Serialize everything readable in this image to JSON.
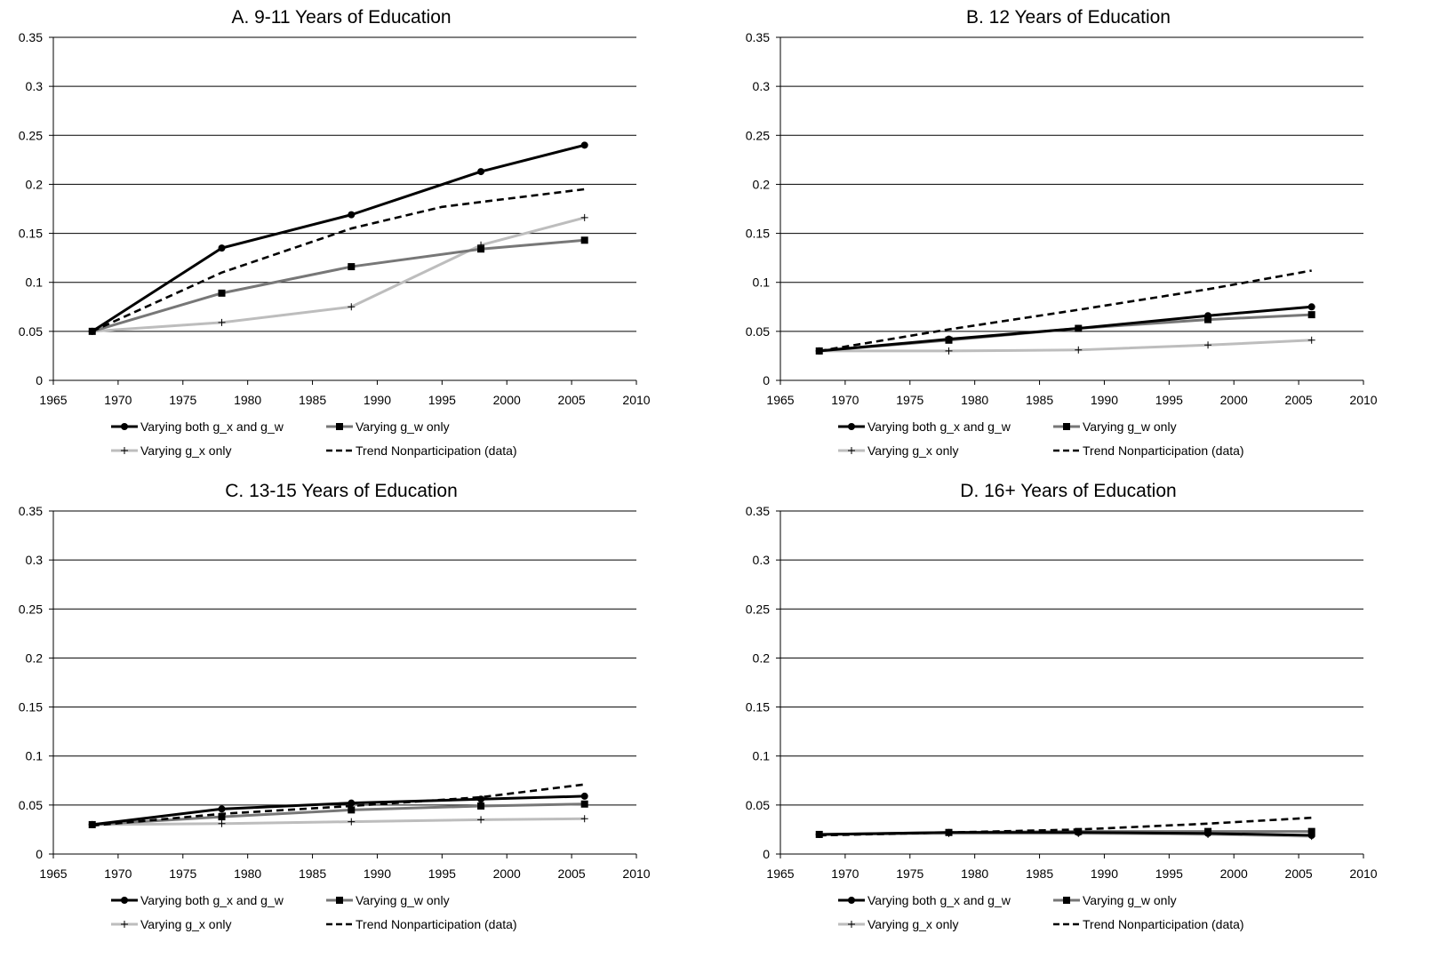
{
  "legend_labels": {
    "both": "Varying both g_x and g_w",
    "gw": "Varying g_w only",
    "gx": "Varying g_x only",
    "trend": "Trend Nonparticipation (data)"
  },
  "colors": {
    "both": "#000000",
    "gw": "#777777",
    "gx": "#bdbdbd",
    "trend": "#000000",
    "grid": "#000000"
  },
  "chart_data": [
    {
      "type": "line",
      "title": "A. 9-11 Years of Education",
      "xlim": [
        1965,
        2010
      ],
      "ylim": [
        0,
        0.35
      ],
      "xticks": [
        "1965",
        "1970",
        "1975",
        "1980",
        "1985",
        "1990",
        "1995",
        "2000",
        "2005",
        "2010"
      ],
      "yticks": [
        "0",
        "0.05",
        "0.1",
        "0.15",
        "0.2",
        "0.25",
        "0.3",
        "0.35"
      ],
      "grid": true,
      "legend": "bottom",
      "series": [
        {
          "name": "Varying both g_x and g_w",
          "key": "both",
          "x": [
            1968,
            1978,
            1988,
            1998,
            2006
          ],
          "y": [
            0.05,
            0.135,
            0.169,
            0.213,
            0.24
          ]
        },
        {
          "name": "Varying g_w only",
          "key": "gw",
          "x": [
            1968,
            1978,
            1988,
            1998,
            2006
          ],
          "y": [
            0.05,
            0.089,
            0.116,
            0.134,
            0.143
          ]
        },
        {
          "name": "Varying g_x only",
          "key": "gx",
          "x": [
            1968,
            1978,
            1988,
            1998,
            2006
          ],
          "y": [
            0.05,
            0.059,
            0.075,
            0.138,
            0.166
          ]
        },
        {
          "name": "Trend Nonparticipation (data)",
          "key": "trend",
          "x": [
            1968,
            1978,
            1988,
            1995,
            1998,
            2006
          ],
          "y": [
            0.05,
            0.11,
            0.155,
            0.177,
            0.182,
            0.195
          ]
        }
      ]
    },
    {
      "type": "line",
      "title": "B. 12 Years of Education",
      "xlim": [
        1965,
        2010
      ],
      "ylim": [
        0,
        0.35
      ],
      "xticks": [
        "1965",
        "1970",
        "1975",
        "1980",
        "1985",
        "1990",
        "1995",
        "2000",
        "2005",
        "2010"
      ],
      "yticks": [
        "0",
        "0.05",
        "0.1",
        "0.15",
        "0.2",
        "0.25",
        "0.3",
        "0.35"
      ],
      "grid": true,
      "legend": "bottom",
      "series": [
        {
          "name": "Varying both g_x and g_w",
          "key": "both",
          "x": [
            1968,
            1978,
            1988,
            1998,
            2006
          ],
          "y": [
            0.03,
            0.042,
            0.053,
            0.066,
            0.075
          ]
        },
        {
          "name": "Varying g_w only",
          "key": "gw",
          "x": [
            1968,
            1978,
            1988,
            1998,
            2006
          ],
          "y": [
            0.03,
            0.041,
            0.053,
            0.062,
            0.067
          ]
        },
        {
          "name": "Varying g_x only",
          "key": "gx",
          "x": [
            1968,
            1978,
            1988,
            1998,
            2006
          ],
          "y": [
            0.03,
            0.03,
            0.031,
            0.036,
            0.041
          ]
        },
        {
          "name": "Trend Nonparticipation (data)",
          "key": "trend",
          "x": [
            1968,
            1978,
            1988,
            1998,
            2006
          ],
          "y": [
            0.03,
            0.052,
            0.072,
            0.093,
            0.112
          ]
        }
      ]
    },
    {
      "type": "line",
      "title": "C. 13-15 Years of Education",
      "xlim": [
        1965,
        2010
      ],
      "ylim": [
        0,
        0.35
      ],
      "xticks": [
        "1965",
        "1970",
        "1975",
        "1980",
        "1985",
        "1990",
        "1995",
        "2000",
        "2005",
        "2010"
      ],
      "yticks": [
        "0",
        "0.05",
        "0.1",
        "0.15",
        "0.2",
        "0.25",
        "0.3",
        "0.35"
      ],
      "grid": true,
      "legend": "bottom",
      "series": [
        {
          "name": "Varying both g_x and g_w",
          "key": "both",
          "x": [
            1968,
            1978,
            1988,
            1998,
            2006
          ],
          "y": [
            0.03,
            0.046,
            0.052,
            0.056,
            0.059
          ]
        },
        {
          "name": "Varying g_w only",
          "key": "gw",
          "x": [
            1968,
            1978,
            1988,
            1998,
            2006
          ],
          "y": [
            0.03,
            0.038,
            0.045,
            0.049,
            0.051
          ]
        },
        {
          "name": "Varying g_x only",
          "key": "gx",
          "x": [
            1968,
            1978,
            1988,
            1998,
            2006
          ],
          "y": [
            0.03,
            0.031,
            0.033,
            0.035,
            0.036
          ]
        },
        {
          "name": "Trend Nonparticipation (data)",
          "key": "trend",
          "x": [
            1968,
            1978,
            1988,
            1998,
            2006
          ],
          "y": [
            0.029,
            0.041,
            0.049,
            0.058,
            0.071
          ]
        }
      ]
    },
    {
      "type": "line",
      "title": "D. 16+ Years of Education",
      "xlim": [
        1965,
        2010
      ],
      "ylim": [
        0,
        0.35
      ],
      "xticks": [
        "1965",
        "1970",
        "1975",
        "1980",
        "1985",
        "1990",
        "1995",
        "2000",
        "2005",
        "2010"
      ],
      "yticks": [
        "0",
        "0.05",
        "0.1",
        "0.15",
        "0.2",
        "0.25",
        "0.3",
        "0.35"
      ],
      "grid": true,
      "legend": "bottom",
      "series": [
        {
          "name": "Varying both g_x and g_w",
          "key": "both",
          "x": [
            1968,
            1978,
            1988,
            1998,
            2006
          ],
          "y": [
            0.02,
            0.022,
            0.022,
            0.021,
            0.019
          ]
        },
        {
          "name": "Varying g_w only",
          "key": "gw",
          "x": [
            1968,
            1978,
            1988,
            1998,
            2006
          ],
          "y": [
            0.02,
            0.022,
            0.023,
            0.023,
            0.023
          ]
        },
        {
          "name": "Varying g_x only",
          "key": "gx",
          "x": [
            1968,
            1978,
            1988,
            1998,
            2006
          ],
          "y": [
            0.02,
            0.021,
            0.021,
            0.02,
            0.018
          ]
        },
        {
          "name": "Trend Nonparticipation (data)",
          "key": "trend",
          "x": [
            1968,
            1978,
            1988,
            1998,
            2006
          ],
          "y": [
            0.019,
            0.022,
            0.025,
            0.031,
            0.037
          ]
        }
      ]
    }
  ]
}
